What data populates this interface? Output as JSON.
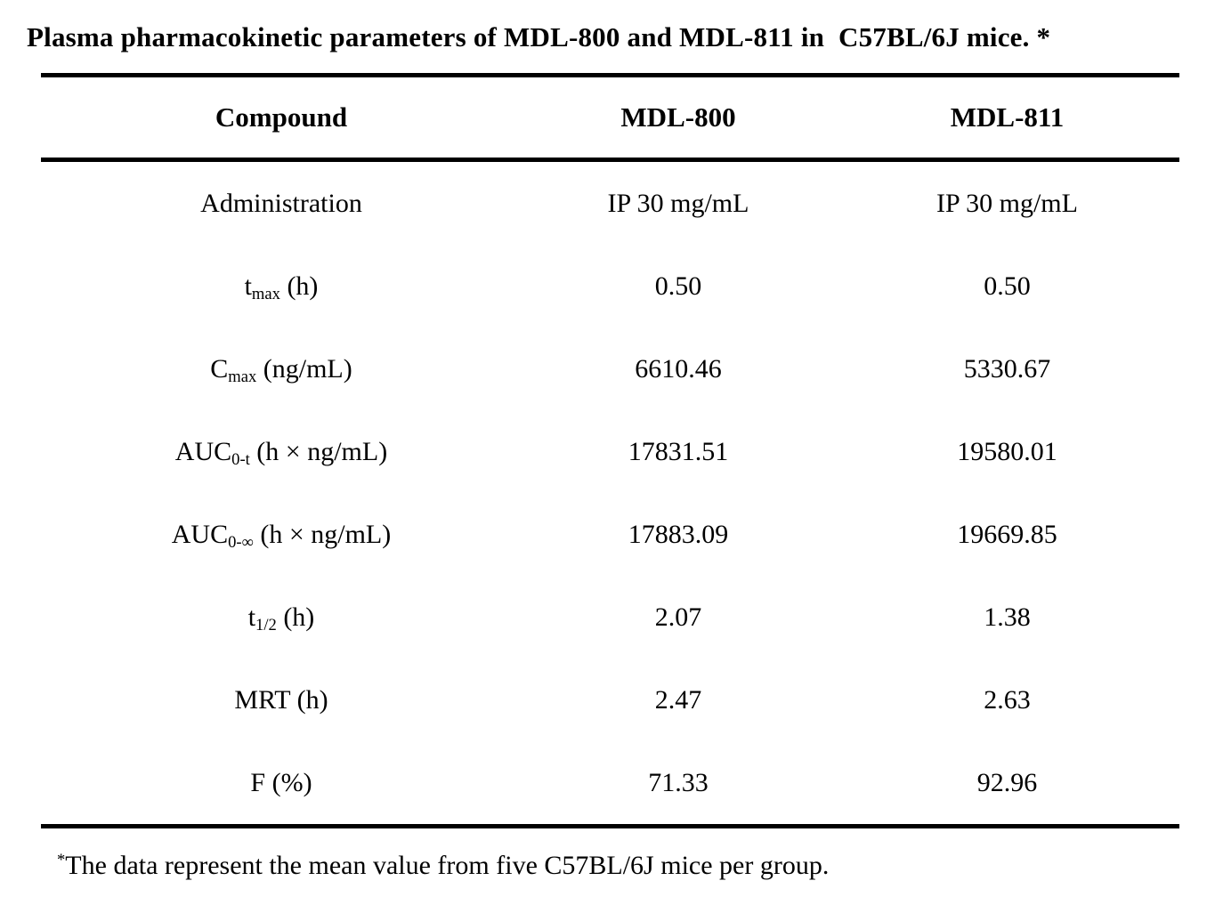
{
  "title": "Plasma pharmacokinetic parameters of MDL-800 and MDL-811 in  C57BL/6J mice. *",
  "table": {
    "header": {
      "compound": "Compound",
      "col1": "MDL-800",
      "col2": "MDL-811"
    },
    "rows": [
      {
        "label": {
          "pre": "Administration",
          "sub": "",
          "post": ""
        },
        "values": [
          "IP 30 mg/mL",
          "IP 30 mg/mL"
        ]
      },
      {
        "label": {
          "pre": "t",
          "sub": "max",
          "post": " (h)"
        },
        "values": [
          "0.50",
          "0.50"
        ]
      },
      {
        "label": {
          "pre": "C",
          "sub": "max",
          "post": " (ng/mL)"
        },
        "values": [
          "6610.46",
          "5330.67"
        ]
      },
      {
        "label": {
          "pre": "AUC",
          "sub": "0-t",
          "post": " (h × ng/mL)"
        },
        "values": [
          "17831.51",
          "19580.01"
        ]
      },
      {
        "label": {
          "pre": "AUC",
          "sub": "0-∞",
          "post": " (h × ng/mL)"
        },
        "values": [
          "17883.09",
          "19669.85"
        ]
      },
      {
        "label": {
          "pre": "t",
          "sub": "1/2",
          "post": " (h)"
        },
        "values": [
          "2.07",
          "1.38"
        ]
      },
      {
        "label": {
          "pre": "MRT (h)",
          "sub": "",
          "post": ""
        },
        "values": [
          "2.47",
          "2.63"
        ]
      },
      {
        "label": {
          "pre": "F (%)",
          "sub": "",
          "post": ""
        },
        "values": [
          "71.33",
          "92.96"
        ]
      }
    ]
  },
  "footnote": {
    "marker": "*",
    "text": "The data represent the mean value from five C57BL/6J mice per group."
  },
  "colors": {
    "background": "#ffffff",
    "text": "#000000",
    "rule": "#000000"
  }
}
